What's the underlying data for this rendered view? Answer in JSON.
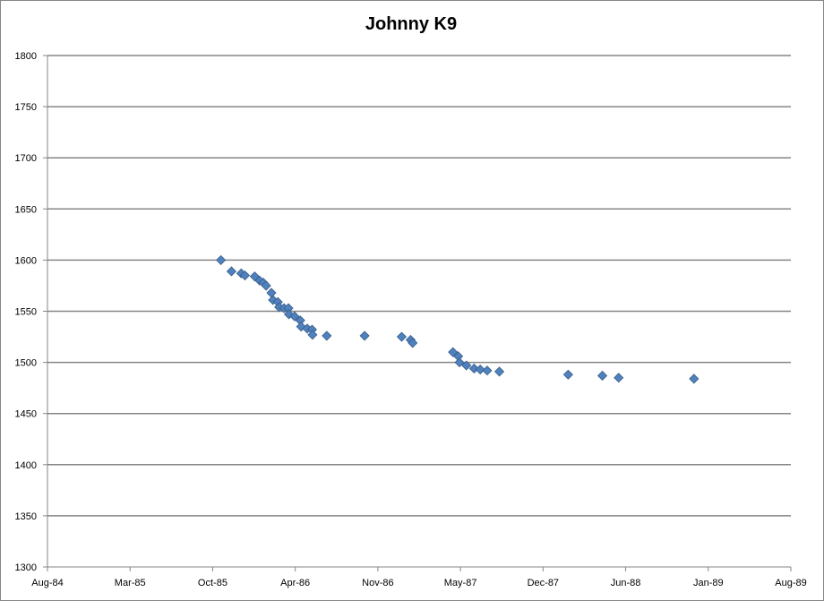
{
  "chart_data": {
    "type": "scatter",
    "title": "Johnny K9",
    "xlabel": "",
    "ylabel": "",
    "x_tick_labels": [
      "Aug-84",
      "Mar-85",
      "Oct-85",
      "Apr-86",
      "Nov-86",
      "May-87",
      "Dec-87",
      "Jun-88",
      "Jan-89",
      "Aug-89"
    ],
    "y_tick_labels": [
      "1300",
      "1350",
      "1400",
      "1450",
      "1500",
      "1550",
      "1600",
      "1650",
      "1700",
      "1750",
      "1800"
    ],
    "ylim": [
      1300,
      1800
    ],
    "xlim": [
      "1984-08-01",
      "1989-08-01"
    ],
    "grid": "horizontal",
    "legend": "none",
    "marker": "diamond",
    "colors": {
      "marker": "#4F81BD",
      "marker_edge": "#385D8A",
      "grid": "#868686",
      "axis": "#868686"
    },
    "series": [
      {
        "points": [
          {
            "x": "1985-10-01",
            "y": 1600
          },
          {
            "x": "1985-10-27",
            "y": 1589
          },
          {
            "x": "1985-11-20",
            "y": 1587
          },
          {
            "x": "1985-11-29",
            "y": 1585
          },
          {
            "x": "1985-12-23",
            "y": 1584
          },
          {
            "x": "1986-01-04",
            "y": 1580
          },
          {
            "x": "1986-01-13",
            "y": 1578
          },
          {
            "x": "1986-01-20",
            "y": 1575
          },
          {
            "x": "1986-02-02",
            "y": 1568
          },
          {
            "x": "1986-02-06",
            "y": 1561
          },
          {
            "x": "1986-02-18",
            "y": 1559
          },
          {
            "x": "1986-02-21",
            "y": 1554
          },
          {
            "x": "1986-03-05",
            "y": 1553
          },
          {
            "x": "1986-03-16",
            "y": 1553
          },
          {
            "x": "1986-03-17",
            "y": 1547
          },
          {
            "x": "1986-03-31",
            "y": 1545
          },
          {
            "x": "1986-04-14",
            "y": 1541
          },
          {
            "x": "1986-04-16",
            "y": 1535
          },
          {
            "x": "1986-05-01",
            "y": 1533
          },
          {
            "x": "1986-05-13",
            "y": 1532
          },
          {
            "x": "1986-05-14",
            "y": 1527
          },
          {
            "x": "1986-06-18",
            "y": 1526
          },
          {
            "x": "1986-09-19",
            "y": 1526
          },
          {
            "x": "1986-12-19",
            "y": 1525
          },
          {
            "x": "1987-01-10",
            "y": 1522
          },
          {
            "x": "1987-01-15",
            "y": 1519
          },
          {
            "x": "1987-04-24",
            "y": 1510
          },
          {
            "x": "1987-05-07",
            "y": 1506
          },
          {
            "x": "1987-05-10",
            "y": 1500
          },
          {
            "x": "1987-05-27",
            "y": 1497
          },
          {
            "x": "1987-06-15",
            "y": 1494
          },
          {
            "x": "1987-06-30",
            "y": 1493
          },
          {
            "x": "1987-07-17",
            "y": 1492
          },
          {
            "x": "1987-08-16",
            "y": 1491
          },
          {
            "x": "1988-02-01",
            "y": 1488
          },
          {
            "x": "1988-04-25",
            "y": 1487
          },
          {
            "x": "1988-06-04",
            "y": 1485
          },
          {
            "x": "1988-12-06",
            "y": 1484
          }
        ]
      }
    ]
  }
}
